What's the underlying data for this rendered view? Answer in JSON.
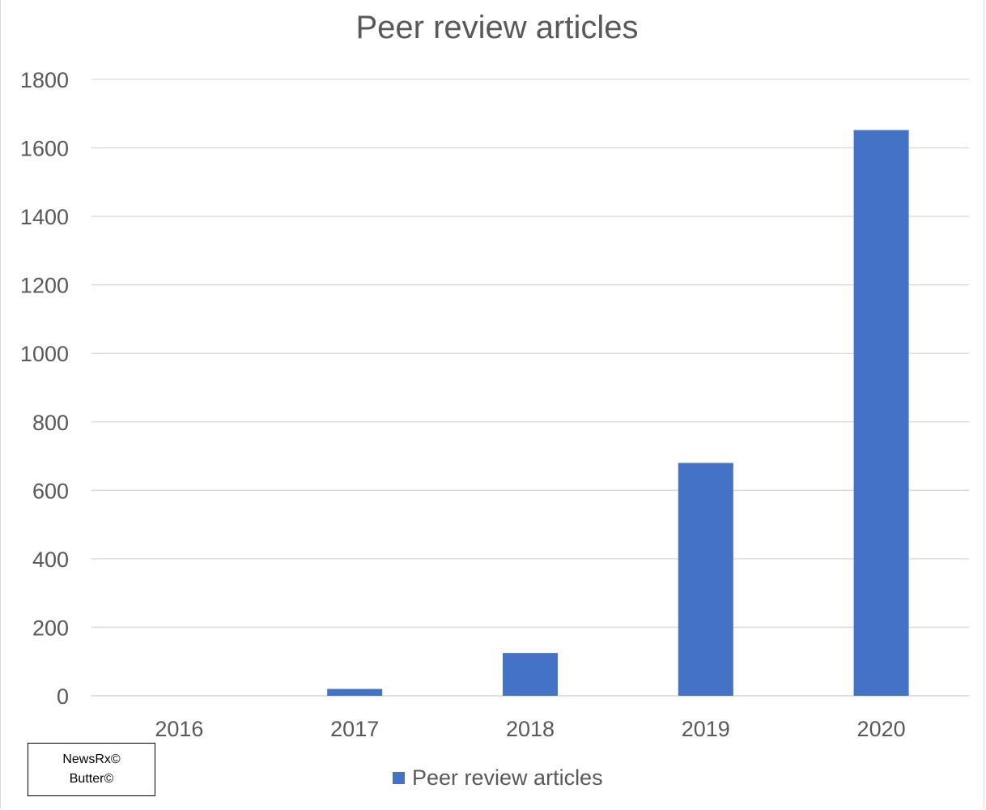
{
  "chart_data": {
    "type": "bar",
    "title": "Peer review articles",
    "categories": [
      "2016",
      "2017",
      "2018",
      "2019",
      "2020"
    ],
    "series": [
      {
        "name": "Peer review articles",
        "values": [
          0,
          20,
          125,
          680,
          1652
        ],
        "color": "#4472C4"
      }
    ],
    "yticks": [
      0,
      200,
      400,
      600,
      800,
      1000,
      1200,
      1400,
      1600,
      1800
    ],
    "ylim": [
      0,
      1800
    ],
    "xlabel": "",
    "ylabel": "",
    "grid": true,
    "legend_position": "bottom"
  },
  "watermark": {
    "line1": "NewsRx©",
    "line2": "Butter©"
  }
}
